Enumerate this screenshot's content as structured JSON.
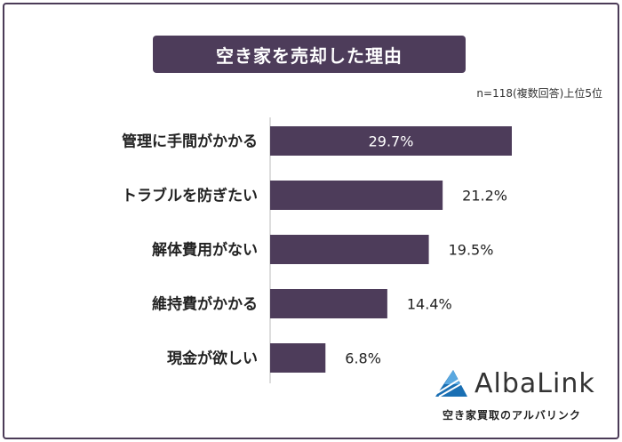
{
  "header": {
    "title": "空き家を売却した理由",
    "note": "n=118(複数回答)上位5位"
  },
  "chart_data": {
    "type": "bar",
    "orientation": "horizontal",
    "title": "空き家を売却した理由",
    "categories": [
      "管理に手間がかかる",
      "トラブルを防ぎたい",
      "解体費用がない",
      "維持費がかかる",
      "現金が欲しい"
    ],
    "values": [
      29.7,
      21.2,
      19.5,
      14.4,
      6.8
    ],
    "value_labels": [
      "29.7%",
      "21.2%",
      "19.5%",
      "14.4%",
      "6.8%"
    ],
    "unit": "%",
    "xlim": [
      0,
      30
    ],
    "grid": false,
    "bar_color": "#4d3c5a"
  },
  "logo": {
    "wordmark": "AlbaLink",
    "tagline": "空き家買取のアルバリンク"
  },
  "colors": {
    "accent": "#4d3c5a",
    "logo_blue": "#1a6fb3"
  }
}
